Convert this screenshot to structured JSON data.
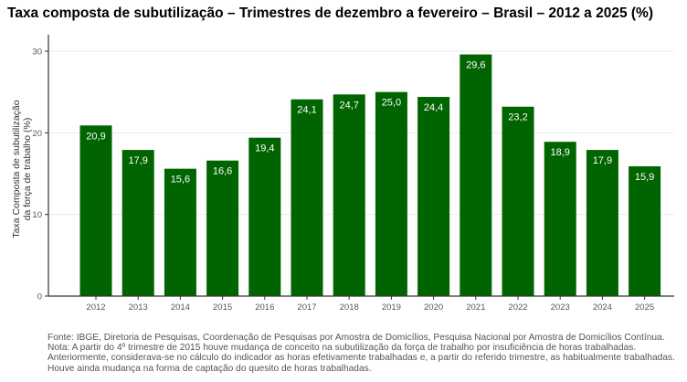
{
  "chart_data": {
    "type": "bar",
    "title": "Taxa composta de subutilização – Trimestres de dezembro a fevereiro – Brasil – 2012 a 2025 (%)",
    "ylabel_line1": "Taxa Composta de subutilização",
    "ylabel_line2": "da força de trabalho (%)",
    "xlabel": "",
    "categories": [
      "2012",
      "2013",
      "2014",
      "2015",
      "2016",
      "2017",
      "2018",
      "2019",
      "2020",
      "2021",
      "2022",
      "2023",
      "2024",
      "2025"
    ],
    "values": [
      20.9,
      17.9,
      15.6,
      16.6,
      19.4,
      24.1,
      24.7,
      25.0,
      24.4,
      29.6,
      23.2,
      18.9,
      17.9,
      15.9
    ],
    "value_labels": [
      "20,9",
      "17,9",
      "15,6",
      "16,6",
      "19,4",
      "24,1",
      "24,7",
      "25,0",
      "24,4",
      "29,6",
      "23,2",
      "18,9",
      "17,9",
      "15,9"
    ],
    "ylim": [
      0,
      30
    ],
    "yticks": [
      0,
      10,
      20,
      30
    ],
    "grid": true,
    "bar_color": "#006400",
    "label_color": "#ffffff"
  },
  "notes": {
    "source": "Fonte: IBGE, Diretoria de Pesquisas, Coordenação de Pesquisas por Amostra de Domicílios, Pesquisa Nacional por Amostra de Domicílios Contínua.",
    "note_line1": "Nota: A partir do 4º trimestre de 2015 houve mudança de conceito na subutilização da força de trabalho por insuficiência de horas trabalhadas.",
    "note_line2": "Anteriormente, considerava-se no cálculo do indicador as horas efetivamente trabalhadas e, a partir do referido trimestre, as habitualmente trabalhadas.",
    "note_line3": "Houve ainda mudança na forma de captação do quesito de horas trabalhadas."
  }
}
